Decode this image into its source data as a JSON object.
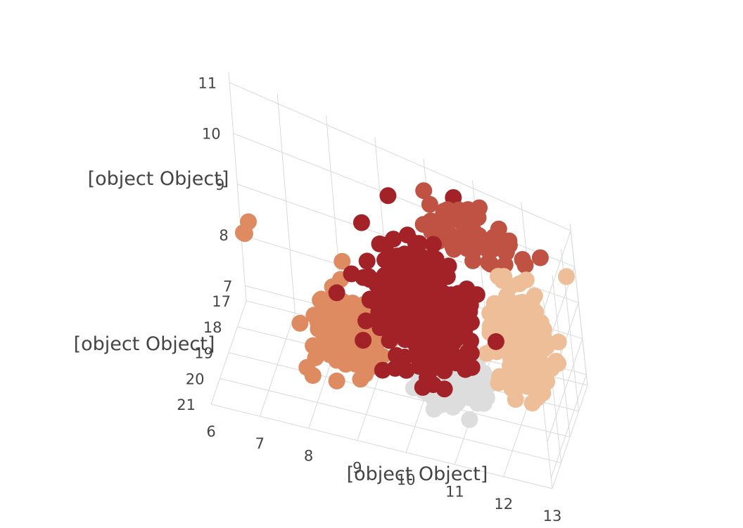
{
  "chart_data": {
    "type": "scatter",
    "title": "",
    "xlabel": "[object Object]",
    "ylabel": "[object Object]",
    "zlabel": "[object Object]",
    "x_ticks": [
      "6",
      "7",
      "8",
      "9",
      "10",
      "11",
      "12",
      "13"
    ],
    "y_ticks": [
      "17",
      "18",
      "19",
      "20",
      "21"
    ],
    "z_ticks": [
      "7",
      "8",
      "9",
      "10",
      "11"
    ],
    "xlim": [
      6,
      13
    ],
    "ylim": [
      17,
      21
    ],
    "zlim": [
      6.7,
      11.2
    ],
    "grid": true,
    "series": [
      {
        "color": "#bf5242",
        "center": [
          11.2,
          18.0,
          10.6
        ],
        "spread": [
          0.9,
          0.7,
          0.35
        ],
        "count": 70
      },
      {
        "color": "#dddddd",
        "center": [
          10.6,
          18.3,
          6.8
        ],
        "spread": [
          0.8,
          0.7,
          0.35
        ],
        "count": 90
      },
      {
        "color": "#edbe98",
        "center": [
          12.0,
          18.4,
          8.6
        ],
        "spread": [
          0.55,
          0.55,
          1.0
        ],
        "count": 240
      },
      {
        "color": "#de8b62",
        "center": [
          8.4,
          18.7,
          7.6
        ],
        "spread": [
          0.6,
          0.6,
          0.65
        ],
        "count": 190
      },
      {
        "color": "#a22227",
        "center": [
          10.1,
          19.0,
          8.9
        ],
        "spread": [
          0.9,
          0.7,
          1.15
        ],
        "count": 420
      }
    ],
    "outliers": [
      {
        "color": "#de8b62",
        "points": [
          [
            6.4,
            18.0,
            8.9
          ],
          [
            6.3,
            18.1,
            8.7
          ],
          [
            6.35,
            18.2,
            8.75
          ]
        ]
      },
      {
        "color": "#a22227",
        "points": [
          [
            10.7,
            17.6,
            11.0
          ]
        ]
      },
      {
        "color": "#edbe98",
        "points": [
          [
            13.0,
            17.8,
            10.3
          ]
        ]
      }
    ]
  }
}
